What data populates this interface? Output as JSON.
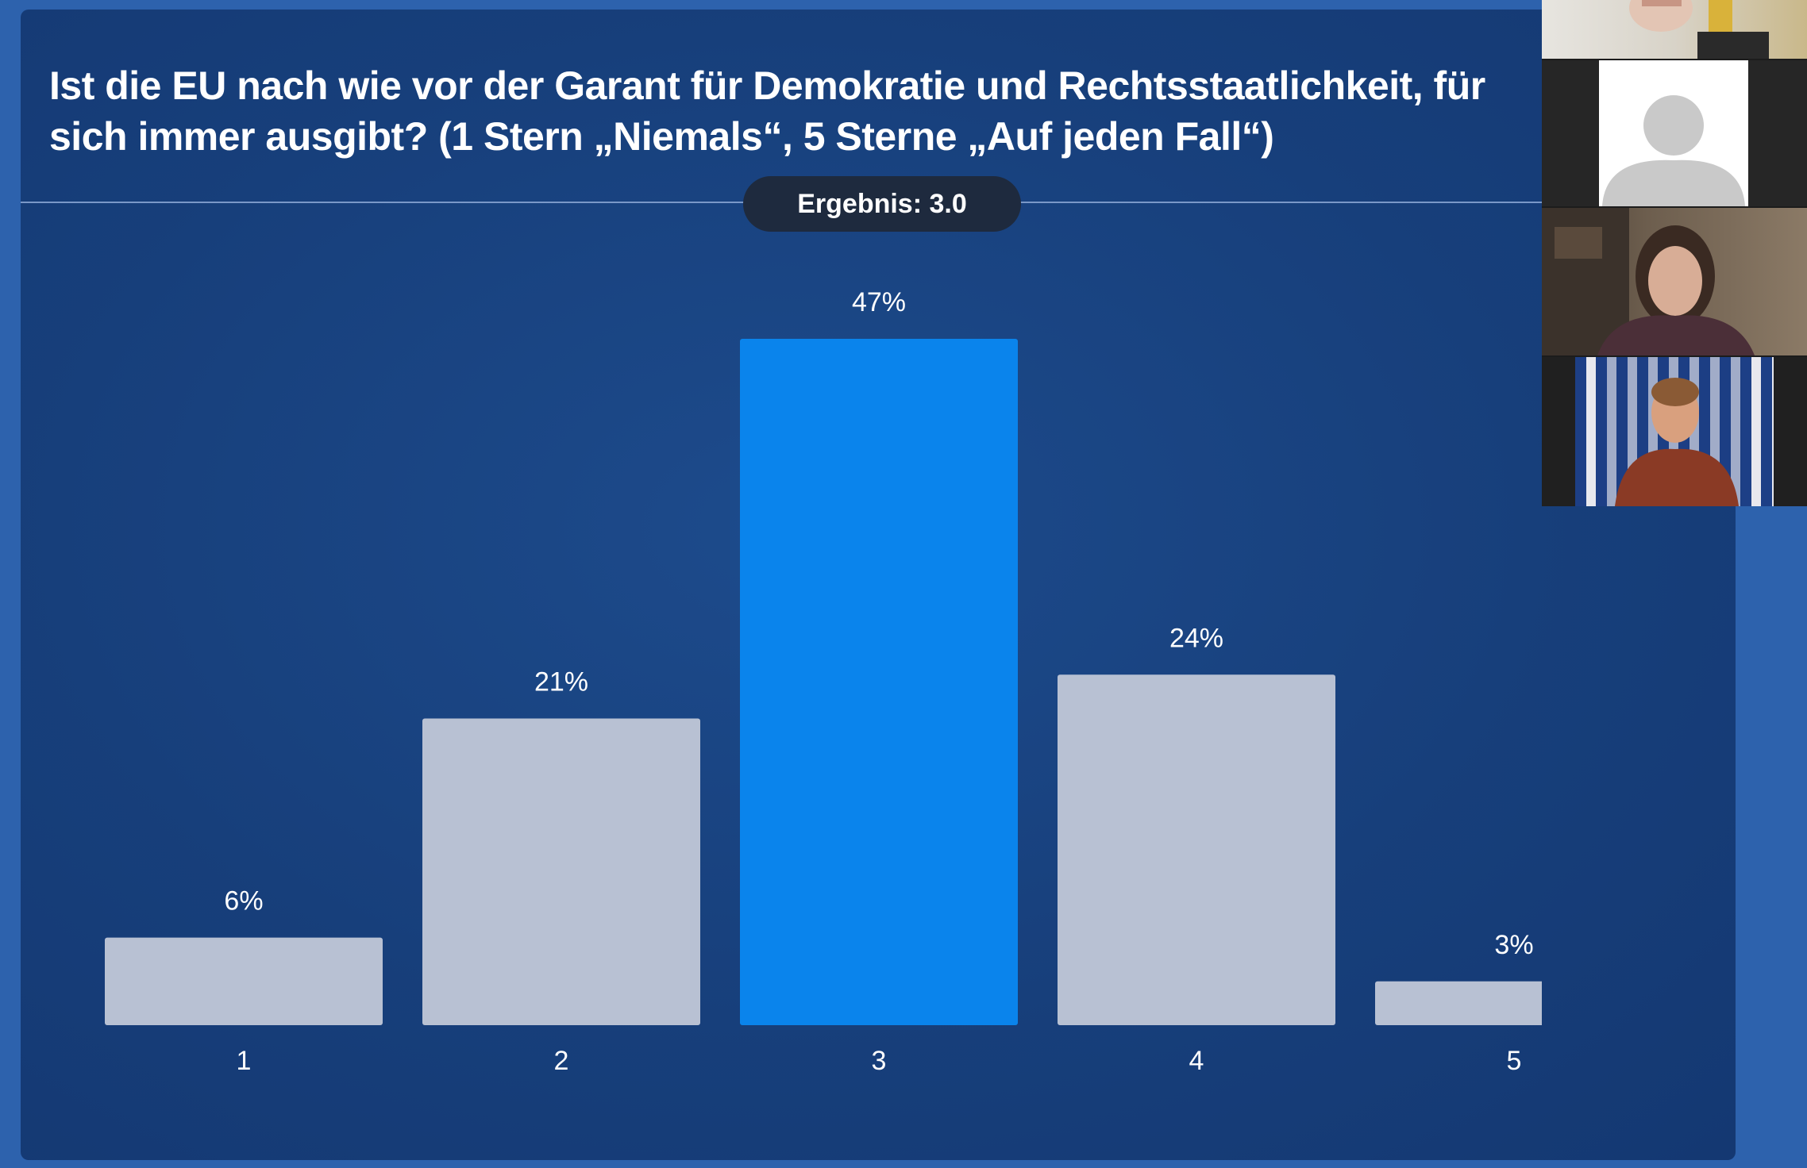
{
  "question": "Ist die EU nach wie vor der Garant für Demokratie und Rechtsstaatlichkeit, für sich immer ausgibt? (1 Stern „Niemals“, 5 Sterne „Auf jeden Fall“)",
  "result_badge": "Ergebnis: 3.0",
  "colors": {
    "background": "#2d62ad",
    "panel": "#173f7b",
    "bar_default": "#b8c1d3",
    "bar_highlight": "#0a84ec",
    "badge": "#1e2a3e"
  },
  "participants": [
    {
      "name": "",
      "icon": "person-video"
    },
    {
      "name": "",
      "icon": "person-placeholder-icon"
    },
    {
      "name": "",
      "icon": "person-video"
    },
    {
      "name": "",
      "icon": "person-video"
    }
  ],
  "chart_data": {
    "type": "bar",
    "categories": [
      "1",
      "2",
      "3",
      "4",
      "5"
    ],
    "values": [
      6,
      21,
      47,
      24,
      3
    ],
    "value_labels": [
      "6%",
      "21%",
      "47%",
      "24%",
      "3%"
    ],
    "highlight_category": "3",
    "ylim": [
      0,
      47
    ],
    "title": "",
    "xlabel": "",
    "ylabel": "",
    "grid": false
  }
}
